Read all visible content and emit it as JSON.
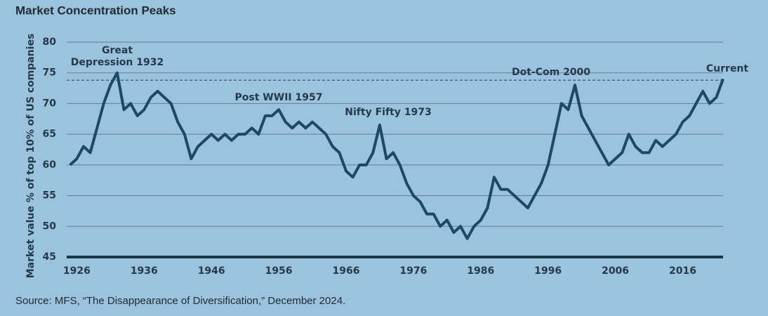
{
  "chart_data": {
    "type": "line",
    "title": "Market Concentration Peaks",
    "y_label": "Market value % of top 10% of US companies",
    "source": "Source: MFS, “The Disappearance of Diversification,” December 2024.",
    "annotations": [
      "Great",
      "Depression 1932",
      "Post WWII 1957",
      "Nifty Fifty 1973",
      "Dot-Com 2000",
      "Current"
    ],
    "reference_line": 73.8,
    "color": "#1d4866",
    "x": [
      1925,
      1926,
      1927,
      1928,
      1929,
      1930,
      1931,
      1932,
      1933,
      1934,
      1935,
      1936,
      1937,
      1938,
      1939,
      1940,
      1941,
      1942,
      1943,
      1944,
      1945,
      1946,
      1947,
      1948,
      1949,
      1950,
      1951,
      1952,
      1953,
      1954,
      1955,
      1956,
      1957,
      1958,
      1959,
      1960,
      1961,
      1962,
      1963,
      1964,
      1965,
      1966,
      1967,
      1968,
      1969,
      1970,
      1971,
      1972,
      1973,
      1974,
      1975,
      1976,
      1977,
      1978,
      1979,
      1980,
      1981,
      1982,
      1983,
      1984,
      1985,
      1986,
      1987,
      1988,
      1989,
      1990,
      1991,
      1992,
      1993,
      1994,
      1995,
      1996,
      1997,
      1998,
      1999,
      2000,
      2001,
      2002,
      2003,
      2004,
      2005,
      2006,
      2007,
      2008,
      2009,
      2010,
      2011,
      2012,
      2013,
      2014,
      2015,
      2016,
      2017,
      2018,
      2019,
      2020,
      2021,
      2022
    ],
    "values": [
      60,
      61,
      63,
      62,
      66,
      70,
      73,
      75,
      69,
      70,
      68,
      69,
      71,
      72,
      71,
      70,
      67,
      65,
      61,
      63,
      64,
      65,
      64,
      65,
      64,
      65,
      65,
      66,
      65,
      68,
      68,
      69,
      67,
      66,
      67,
      66,
      67,
      66,
      65,
      63,
      62,
      59,
      58,
      60,
      60,
      62,
      66.5,
      61,
      62,
      60,
      57,
      55,
      54,
      52,
      52,
      50,
      51,
      49,
      50,
      48,
      50,
      51,
      53,
      58,
      56,
      56,
      55,
      54,
      53,
      55,
      57,
      60,
      65,
      70,
      69,
      73,
      68,
      66,
      64,
      62,
      60,
      61,
      62,
      65,
      63,
      62,
      62,
      64,
      63,
      64,
      65,
      67,
      68,
      70,
      72,
      70,
      71,
      74
    ],
    "xlim": [
      1924.5,
      2022
    ],
    "xticks": [
      1926,
      1936,
      1946,
      1956,
      1966,
      1976,
      1986,
      1996,
      2006,
      2016
    ],
    "ylim": [
      45,
      80
    ],
    "yticks": [
      45,
      50,
      55,
      60,
      65,
      70,
      75,
      80
    ],
    "grid": true
  }
}
